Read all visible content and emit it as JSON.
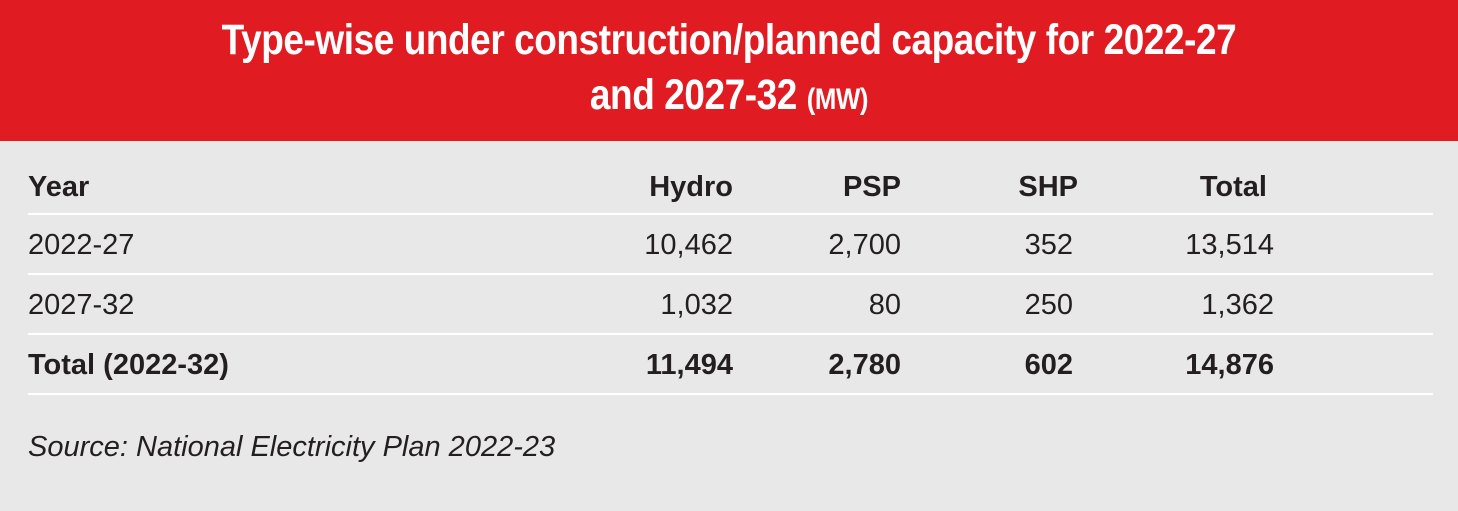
{
  "title": {
    "line1": "Type-wise under construction/planned capacity for 2022-27",
    "line2": "and 2027-32",
    "unit": "(MW)"
  },
  "table": {
    "headers": [
      "Year",
      "Hydro",
      "PSP",
      "SHP",
      "Total"
    ],
    "rows": [
      [
        "2022-27",
        "10,462",
        "2,700",
        "352",
        "13,514"
      ],
      [
        "2027-32",
        "1,032",
        "80",
        "250",
        "1,362"
      ]
    ],
    "total_row": [
      "Total (2022-32)",
      "11,494",
      "2,780",
      "602",
      "14,876"
    ]
  },
  "source": "Source: National Electricity Plan 2022-23",
  "colors": {
    "header_bg": "#e11b22",
    "panel_bg": "#e8e8e9",
    "text": "#231f20"
  }
}
